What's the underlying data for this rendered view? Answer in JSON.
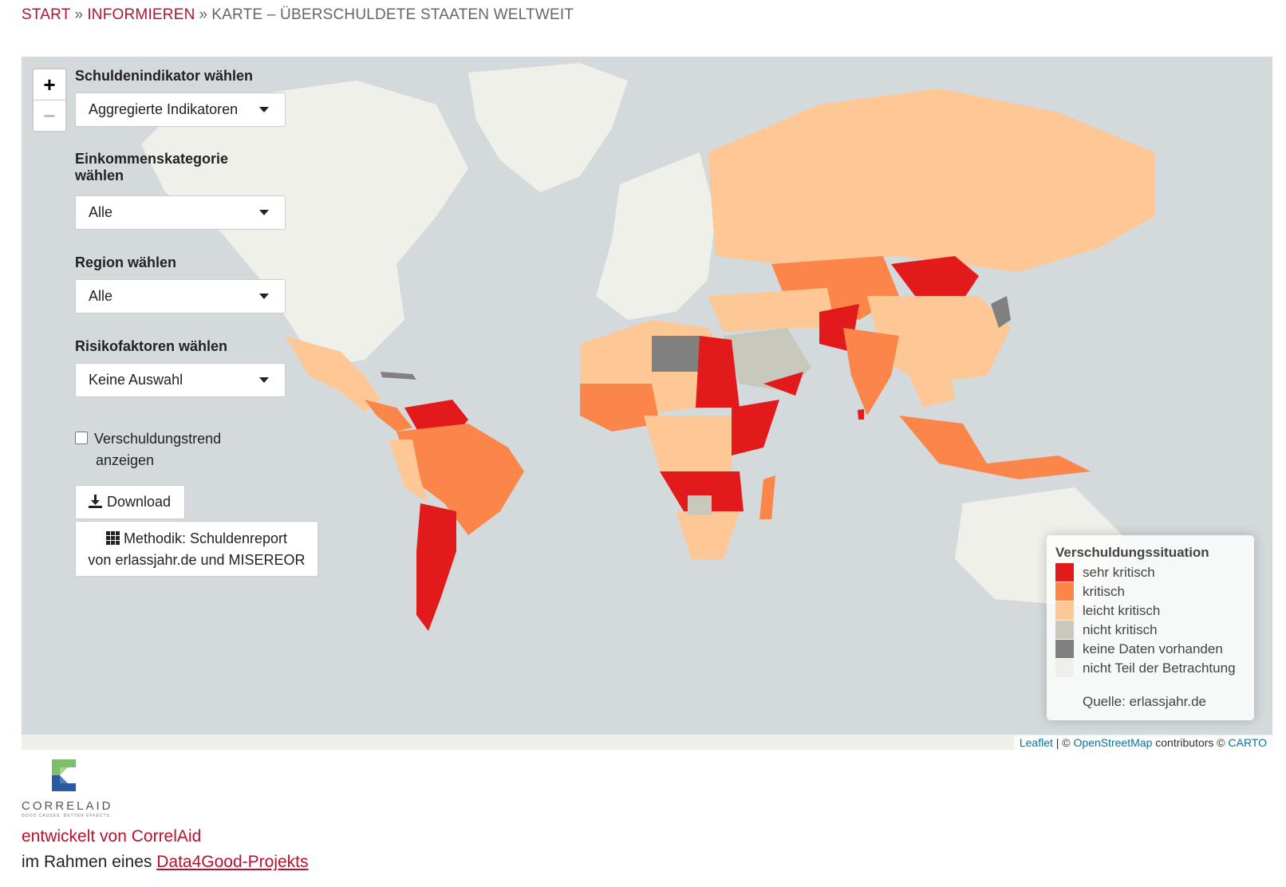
{
  "breadcrumb": {
    "items": [
      "START",
      "INFORMIEREN"
    ],
    "current": "KARTE – ÜBERSCHULDETE STAATEN WELTWEIT",
    "separator": "»"
  },
  "controls": {
    "zoom_in": "+",
    "zoom_out": "−",
    "indicator_label": "Schuldenindikator wählen",
    "indicator_value": "Aggregierte Indikatoren",
    "income_label_line1": "Einkommenskategorie",
    "income_label_line2": "wählen",
    "income_value": "Alle",
    "region_label": "Region wählen",
    "region_value": "Alle",
    "risk_label": "Risikofaktoren wählen",
    "risk_value": "Keine Auswahl",
    "trend_label_line1": "Verschuldungstrend",
    "trend_label_line2": "anzeigen",
    "download_label": "Download",
    "method_line1": "Methodik: Schuldenreport",
    "method_line2": "von erlassjahr.de und MISEREOR"
  },
  "legend": {
    "title": "Verschuldungssituation",
    "items": [
      {
        "label": "sehr kritisch",
        "color": "#e31a1c"
      },
      {
        "label": "kritisch",
        "color": "#fc8549"
      },
      {
        "label": "leicht kritisch",
        "color": "#fdc796"
      },
      {
        "label": "nicht kritisch",
        "color": "#c8c8bc"
      },
      {
        "label": "keine Daten vorhanden",
        "color": "#808080"
      },
      {
        "label": "nicht Teil der Betrachtung",
        "color": "#eff0ea"
      }
    ],
    "source": "Quelle: erlassjahr.de"
  },
  "attribution": {
    "leaflet": "Leaflet",
    "sep": "| ©",
    "osm": "OpenStreetMap",
    "contrib": "contributors ©",
    "carto": "CARTO"
  },
  "footer": {
    "logo_text": "CORRELAID",
    "logo_tagline": "GOOD CAUSES. BETTER EFFECTS.",
    "developed_by": "entwickelt von CorrelAid",
    "context_prefix": "im Rahmen eines",
    "context_link": "Data4Good-Projekts"
  },
  "colors": {
    "sehr_kritisch": "#e31a1c",
    "kritisch": "#fc8549",
    "leicht_kritisch": "#fdc796",
    "nicht_kritisch": "#c8c8bc",
    "keine_daten": "#808080",
    "nicht_betrachtet": "#eff0ea",
    "ocean": "#d4dadc",
    "accent": "#b5122f"
  }
}
